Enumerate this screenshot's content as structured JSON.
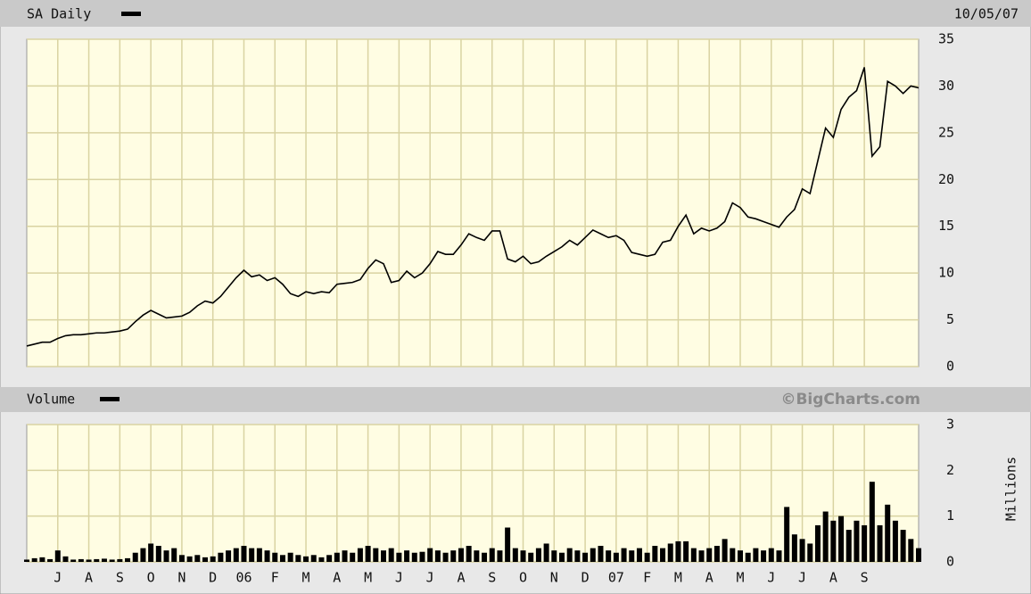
{
  "chart_data": [
    {
      "type": "line",
      "date": "10/05/07",
      "series": [
        {
          "name": "SA Daily",
          "color": "#000000",
          "values": [
            2.2,
            2.4,
            2.6,
            2.6,
            3.0,
            3.3,
            3.4,
            3.4,
            3.5,
            3.6,
            3.6,
            3.7,
            3.8,
            4.0,
            4.8,
            5.5,
            6.0,
            5.6,
            5.2,
            5.3,
            5.4,
            5.8,
            6.5,
            7.0,
            6.8,
            7.5,
            8.5,
            9.5,
            10.3,
            9.6,
            9.8,
            9.2,
            9.5,
            8.8,
            7.8,
            7.5,
            8.0,
            7.8,
            8.0,
            7.9,
            8.8,
            8.9,
            9.0,
            9.3,
            10.5,
            11.4,
            11.0,
            9.0,
            9.2,
            10.2,
            9.5,
            10.0,
            11.0,
            12.3,
            12.0,
            12.0,
            13.0,
            14.2,
            13.8,
            13.5,
            14.5,
            14.5,
            11.5,
            11.2,
            11.8,
            11.0,
            11.2,
            11.8,
            12.3,
            12.8,
            13.5,
            13.0,
            13.8,
            14.6,
            14.2,
            13.8,
            14.0,
            13.5,
            12.2,
            12.0,
            11.8,
            12.0,
            13.3,
            13.5,
            15.0,
            16.2,
            14.2,
            14.8,
            14.5,
            14.8,
            15.5,
            17.5,
            17.0,
            16.0,
            15.8,
            15.5,
            15.2,
            14.9,
            16.0,
            16.8,
            19.0,
            18.5,
            22.0,
            25.5,
            24.5,
            27.5,
            28.8,
            29.5,
            32.0,
            22.5,
            23.5,
            30.5,
            30.0,
            29.2,
            30.0,
            29.8
          ]
        }
      ],
      "ylim": [
        0,
        35
      ],
      "yticks": [
        0,
        5,
        10,
        15,
        20,
        25,
        30,
        35
      ],
      "grid": true
    },
    {
      "type": "bar",
      "y_label": "Millions",
      "source": "©BigCharts.com",
      "categories": [
        null,
        null,
        null,
        null,
        "J",
        null,
        null,
        null,
        "A",
        null,
        null,
        null,
        "S",
        null,
        null,
        null,
        "O",
        null,
        null,
        null,
        "N",
        null,
        null,
        null,
        "D",
        null,
        null,
        null,
        "06",
        null,
        null,
        null,
        "F",
        null,
        null,
        null,
        "M",
        null,
        null,
        null,
        "A",
        null,
        null,
        null,
        "M",
        null,
        null,
        null,
        "J",
        null,
        null,
        null,
        "J",
        null,
        null,
        null,
        "A",
        null,
        null,
        null,
        "S",
        null,
        null,
        null,
        "O",
        null,
        null,
        null,
        "N",
        null,
        null,
        null,
        "D",
        null,
        null,
        null,
        "07",
        null,
        null,
        null,
        "F",
        null,
        null,
        null,
        "M",
        null,
        null,
        null,
        "A",
        null,
        null,
        null,
        "M",
        null,
        null,
        null,
        "J",
        null,
        null,
        null,
        "J",
        null,
        null,
        null,
        "A",
        null,
        null,
        null,
        "S",
        null,
        null,
        null,
        null,
        null,
        null,
        null
      ],
      "series": [
        {
          "name": "Volume",
          "color": "#000000",
          "values": [
            0.05,
            0.08,
            0.1,
            0.06,
            0.25,
            0.12,
            0.05,
            0.06,
            0.05,
            0.06,
            0.07,
            0.05,
            0.06,
            0.08,
            0.2,
            0.3,
            0.4,
            0.35,
            0.25,
            0.3,
            0.15,
            0.12,
            0.15,
            0.1,
            0.12,
            0.2,
            0.25,
            0.3,
            0.35,
            0.3,
            0.3,
            0.25,
            0.2,
            0.15,
            0.2,
            0.15,
            0.12,
            0.15,
            0.1,
            0.15,
            0.2,
            0.25,
            0.2,
            0.3,
            0.35,
            0.3,
            0.25,
            0.3,
            0.2,
            0.25,
            0.2,
            0.22,
            0.3,
            0.25,
            0.2,
            0.25,
            0.3,
            0.35,
            0.25,
            0.2,
            0.3,
            0.25,
            0.75,
            0.3,
            0.25,
            0.2,
            0.3,
            0.4,
            0.25,
            0.2,
            0.3,
            0.25,
            0.2,
            0.3,
            0.35,
            0.25,
            0.2,
            0.3,
            0.25,
            0.3,
            0.2,
            0.35,
            0.3,
            0.4,
            0.45,
            0.45,
            0.3,
            0.25,
            0.3,
            0.35,
            0.5,
            0.3,
            0.25,
            0.2,
            0.3,
            0.25,
            0.3,
            0.25,
            1.2,
            0.6,
            0.5,
            0.4,
            0.8,
            1.1,
            0.9,
            1.0,
            0.7,
            0.9,
            0.8,
            1.75,
            0.8,
            1.25,
            0.9,
            0.7,
            0.5,
            0.3
          ]
        }
      ],
      "ylim": [
        0,
        3
      ],
      "yticks": [
        0,
        1,
        2,
        3
      ],
      "grid": true
    }
  ]
}
